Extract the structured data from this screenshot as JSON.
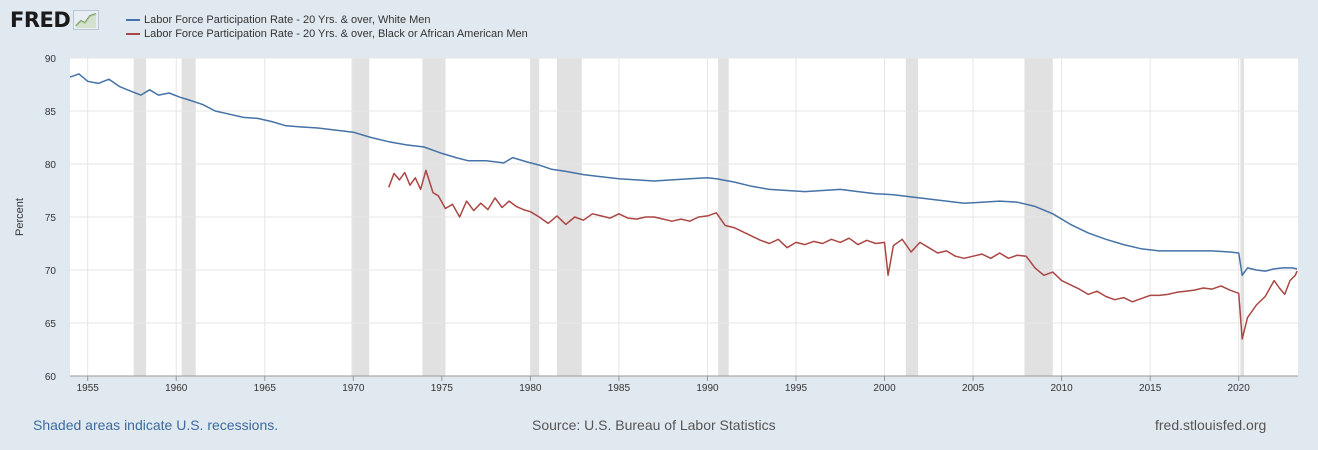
{
  "logo_text": "FRED",
  "footer": {
    "recessions_note": "Shaded areas indicate U.S. recessions.",
    "source": "Source: U.S. Bureau of Labor Statistics",
    "site": "fred.stlouisfed.org"
  },
  "chart_data": {
    "type": "line",
    "title": "",
    "xlabel": "",
    "ylabel": "Percent",
    "xlim": [
      1954.0,
      2023.35
    ],
    "ylim": [
      60,
      90
    ],
    "x_ticks": [
      "1955",
      "1960",
      "1965",
      "1970",
      "1975",
      "1980",
      "1985",
      "1990",
      "1995",
      "2000",
      "2005",
      "2010",
      "2015",
      "2020"
    ],
    "y_ticks": [
      "60",
      "65",
      "70",
      "75",
      "80",
      "85",
      "90"
    ],
    "grid": true,
    "legend_position": "top-left",
    "recessions": [
      [
        1957.6,
        1958.3
      ],
      [
        1960.3,
        1961.1
      ],
      [
        1969.9,
        1970.9
      ],
      [
        1973.9,
        1975.2
      ],
      [
        1980.0,
        1980.5
      ],
      [
        1981.5,
        1982.9
      ],
      [
        1990.6,
        1991.2
      ],
      [
        2001.2,
        2001.9
      ],
      [
        2007.9,
        2009.5
      ],
      [
        2020.1,
        2020.3
      ]
    ],
    "recession_color": "#e1e1e1",
    "series": [
      {
        "name": "Labor Force Participation Rate - 20 Yrs. & over, White Men",
        "color": "#4572a7",
        "x": [
          1954.0,
          1954.5,
          1955.0,
          1955.6,
          1956.2,
          1956.8,
          1957.4,
          1958.0,
          1958.5,
          1959.0,
          1959.6,
          1960.2,
          1960.8,
          1961.5,
          1962.2,
          1963.0,
          1963.8,
          1964.6,
          1965.4,
          1966.2,
          1967.0,
          1968.0,
          1969.0,
          1970.0,
          1971.0,
          1972.0,
          1973.0,
          1974.0,
          1975.0,
          1975.8,
          1976.5,
          1977.5,
          1978.5,
          1979.0,
          1979.8,
          1980.5,
          1981.2,
          1982.0,
          1983.0,
          1984.0,
          1985.0,
          1986.0,
          1987.0,
          1988.0,
          1989.0,
          1990.0,
          1990.5,
          1991.5,
          1992.5,
          1993.5,
          1994.5,
          1995.5,
          1996.5,
          1997.5,
          1998.5,
          1999.5,
          2000.5,
          2001.5,
          2002.5,
          2003.5,
          2004.5,
          2005.5,
          2006.5,
          2007.5,
          2008.5,
          2009.5,
          2010.5,
          2011.5,
          2012.5,
          2013.5,
          2014.5,
          2015.5,
          2016.5,
          2017.5,
          2018.5,
          2019.5,
          2020.0,
          2020.2,
          2020.5,
          2021.0,
          2021.5,
          2022.0,
          2022.5,
          2023.0,
          2023.3
        ],
        "y": [
          88.2,
          88.5,
          87.8,
          87.6,
          88.0,
          87.3,
          86.9,
          86.5,
          87.0,
          86.5,
          86.7,
          86.3,
          86.0,
          85.6,
          85.0,
          84.7,
          84.4,
          84.3,
          84.0,
          83.6,
          83.5,
          83.4,
          83.2,
          83.0,
          82.5,
          82.1,
          81.8,
          81.6,
          81.0,
          80.6,
          80.3,
          80.3,
          80.1,
          80.6,
          80.2,
          79.9,
          79.5,
          79.3,
          79.0,
          78.8,
          78.6,
          78.5,
          78.4,
          78.5,
          78.6,
          78.7,
          78.6,
          78.3,
          77.9,
          77.6,
          77.5,
          77.4,
          77.5,
          77.6,
          77.4,
          77.2,
          77.1,
          76.9,
          76.7,
          76.5,
          76.3,
          76.4,
          76.5,
          76.4,
          76.0,
          75.3,
          74.3,
          73.5,
          72.9,
          72.4,
          72.0,
          71.8,
          71.8,
          71.8,
          71.8,
          71.7,
          71.6,
          69.5,
          70.2,
          70.0,
          69.9,
          70.1,
          70.2,
          70.2,
          70.1
        ]
      },
      {
        "name": "Labor Force Participation Rate - 20 Yrs. & over, Black or African American Men",
        "color": "#aa4643",
        "x": [
          1972.0,
          1972.3,
          1972.6,
          1972.9,
          1973.2,
          1973.5,
          1973.8,
          1974.1,
          1974.5,
          1974.8,
          1975.2,
          1975.6,
          1976.0,
          1976.4,
          1976.8,
          1977.2,
          1977.6,
          1978.0,
          1978.4,
          1978.8,
          1979.2,
          1979.6,
          1980.0,
          1980.5,
          1981.0,
          1981.5,
          1982.0,
          1982.5,
          1983.0,
          1983.5,
          1984.0,
          1984.5,
          1985.0,
          1985.5,
          1986.0,
          1986.5,
          1987.0,
          1987.5,
          1988.0,
          1988.5,
          1989.0,
          1989.5,
          1990.0,
          1990.5,
          1991.0,
          1991.5,
          1992.0,
          1992.5,
          1993.0,
          1993.5,
          1994.0,
          1994.5,
          1995.0,
          1995.5,
          1996.0,
          1996.5,
          1997.0,
          1997.5,
          1998.0,
          1998.5,
          1999.0,
          1999.5,
          2000.0,
          2000.2,
          2000.5,
          2001.0,
          2001.5,
          2002.0,
          2002.5,
          2003.0,
          2003.5,
          2004.0,
          2004.5,
          2005.0,
          2005.5,
          2006.0,
          2006.5,
          2007.0,
          2007.5,
          2008.0,
          2008.5,
          2009.0,
          2009.5,
          2010.0,
          2010.5,
          2011.0,
          2011.5,
          2012.0,
          2012.5,
          2013.0,
          2013.5,
          2014.0,
          2014.5,
          2015.0,
          2015.5,
          2016.0,
          2016.5,
          2017.0,
          2017.5,
          2018.0,
          2018.5,
          2019.0,
          2019.5,
          2020.0,
          2020.2,
          2020.5,
          2021.0,
          2021.5,
          2022.0,
          2022.3,
          2022.6,
          2022.9,
          2023.2,
          2023.3
        ],
        "y": [
          77.8,
          79.1,
          78.5,
          79.2,
          78.0,
          78.7,
          77.6,
          79.4,
          77.3,
          77.0,
          75.8,
          76.2,
          75.0,
          76.5,
          75.6,
          76.3,
          75.7,
          76.8,
          75.9,
          76.5,
          76.0,
          75.7,
          75.5,
          75.0,
          74.4,
          75.1,
          74.3,
          75.0,
          74.7,
          75.3,
          75.1,
          74.9,
          75.3,
          74.9,
          74.8,
          75.0,
          75.0,
          74.8,
          74.6,
          74.8,
          74.6,
          75.0,
          75.1,
          75.4,
          74.2,
          74.0,
          73.6,
          73.2,
          72.8,
          72.5,
          72.9,
          72.1,
          72.6,
          72.4,
          72.7,
          72.5,
          72.9,
          72.6,
          73.0,
          72.4,
          72.8,
          72.5,
          72.6,
          69.5,
          72.3,
          72.9,
          71.7,
          72.6,
          72.1,
          71.6,
          71.8,
          71.3,
          71.1,
          71.3,
          71.5,
          71.1,
          71.6,
          71.1,
          71.4,
          71.3,
          70.2,
          69.5,
          69.8,
          69.0,
          68.6,
          68.2,
          67.7,
          68.0,
          67.5,
          67.2,
          67.4,
          67.0,
          67.3,
          67.6,
          67.6,
          67.7,
          67.9,
          68.0,
          68.1,
          68.3,
          68.2,
          68.5,
          68.1,
          67.8,
          63.5,
          65.5,
          66.7,
          67.5,
          69.0,
          68.3,
          67.7,
          69.0,
          69.5,
          69.9
        ]
      }
    ]
  }
}
